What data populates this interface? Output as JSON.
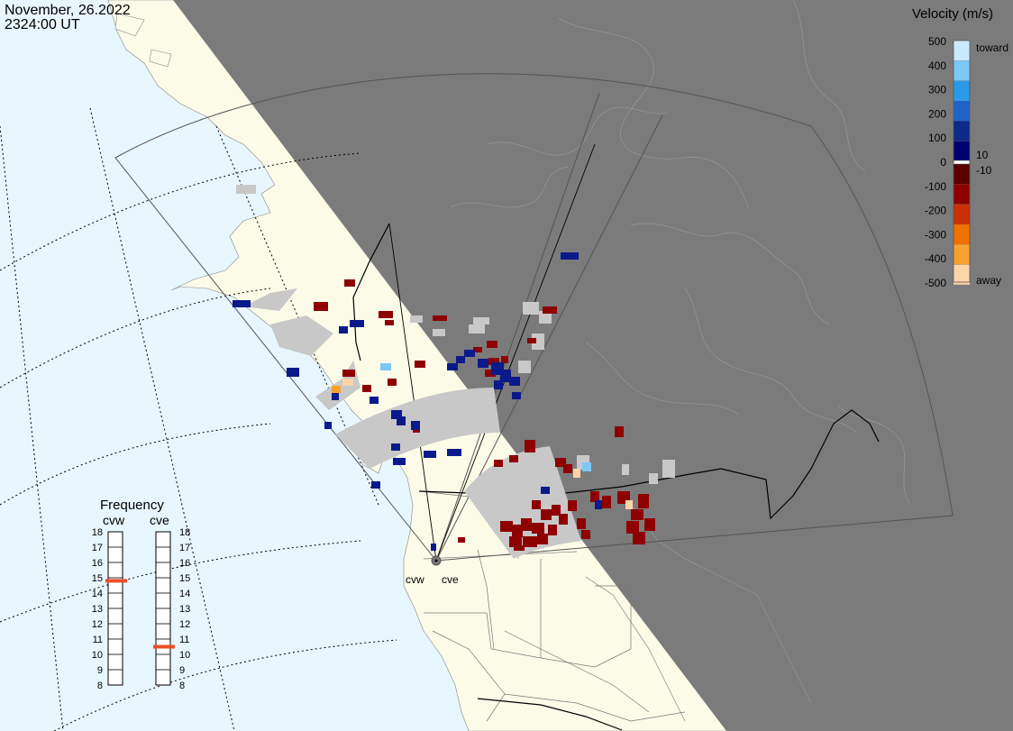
{
  "header": {
    "date": "November, 26.2022",
    "time": "2324:00 UT"
  },
  "legend": {
    "title": "Velocity (m/s)",
    "ticks": [
      "500",
      "400",
      "300",
      "200",
      "100",
      "0",
      "-100",
      "-200",
      "-300",
      "-400",
      "-500"
    ],
    "toward_label": "toward",
    "away_label": "away",
    "pos_threshold": "10",
    "neg_threshold": "-10",
    "colors": [
      "#c8eaff",
      "#7cc8f6",
      "#2a9ae8",
      "#1f63c8",
      "#0b2a8a",
      "#000070",
      "#5a0000",
      "#8e0000",
      "#cc3000",
      "#f07000",
      "#f8a030",
      "#fbd4a8"
    ]
  },
  "radars": {
    "west_label": "cvw",
    "east_label": "cve"
  },
  "frequency": {
    "title": "Frequency",
    "left_label": "cvw",
    "right_label": "cve",
    "scale": [
      "18",
      "17",
      "16",
      "15",
      "14",
      "13",
      "12",
      "11",
      "10",
      "9",
      "8"
    ],
    "cvw_mhz": 14.8,
    "cve_mhz": 10.5,
    "marker_color": "#e8502a"
  },
  "colors": {
    "ocean": "#e8f6ff",
    "land": "#fbfbe8",
    "night": "#7b7b7b",
    "ground_scatter": "#c8c8c8",
    "outline": "#555555"
  }
}
